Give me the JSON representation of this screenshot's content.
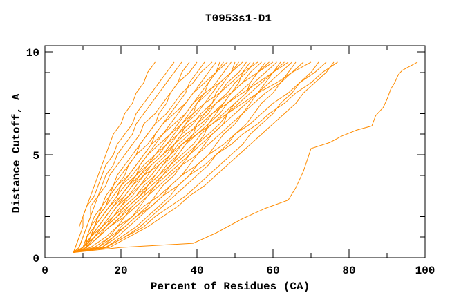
{
  "window": {
    "title": "T0953s1-D1"
  },
  "chart_data": {
    "type": "line",
    "title": "T0953s1-D1",
    "xlabel": "Percent of Residues (CA)",
    "ylabel": "Distance Cutoff, A",
    "xlim": [
      0,
      100
    ],
    "ylim": [
      0,
      10
    ],
    "x_major_ticks": [
      0,
      20,
      40,
      60,
      80,
      100
    ],
    "x_minor_ticks": [
      10,
      30,
      50,
      70,
      90
    ],
    "y_major_ticks": [
      0,
      5,
      10
    ],
    "y_minor_ticks": [
      1,
      2,
      3,
      4,
      6,
      7,
      8,
      9
    ],
    "grid": "off",
    "legend": "none",
    "line_color": "#ff8c00",
    "frame_color": "#000000",
    "origin": [
      7.5,
      0.25
    ],
    "cutoffs": [
      0.5,
      1.0,
      1.5,
      2.0,
      2.5,
      3.0,
      3.5,
      4.0,
      4.5,
      5.0,
      5.5,
      6.0,
      6.5,
      7.0,
      7.5,
      8.0,
      8.5,
      9.0,
      9.5
    ],
    "series": [
      [
        8,
        9,
        9,
        10,
        11,
        12,
        13,
        14,
        15,
        16,
        17,
        18,
        20,
        21,
        23,
        24,
        26,
        27,
        29
      ],
      [
        8,
        9,
        10,
        10,
        11,
        13,
        14,
        15,
        16,
        18,
        19,
        21,
        23,
        24,
        26,
        28,
        30,
        32,
        34
      ],
      [
        9,
        10,
        11,
        12,
        12,
        14,
        15,
        16,
        18,
        19,
        21,
        23,
        24,
        26,
        28,
        30,
        32,
        34,
        36
      ],
      [
        10,
        11,
        13,
        14,
        16,
        17,
        19,
        21,
        22,
        24,
        25,
        27,
        29,
        30,
        32,
        33,
        35,
        36,
        38
      ],
      [
        9,
        10,
        11,
        12,
        13,
        14,
        16,
        17,
        19,
        21,
        23,
        25,
        26,
        29,
        31,
        33,
        35,
        38,
        40
      ],
      [
        10,
        12,
        13,
        15,
        17,
        19,
        20,
        22,
        24,
        26,
        28,
        29,
        31,
        33,
        35,
        37,
        38,
        40,
        42
      ],
      [
        10,
        11,
        12,
        13,
        15,
        16,
        18,
        19,
        21,
        23,
        25,
        27,
        29,
        32,
        34,
        36,
        39,
        41,
        44
      ],
      [
        10,
        12,
        14,
        16,
        18,
        20,
        22,
        24,
        25,
        27,
        29,
        31,
        33,
        35,
        37,
        39,
        41,
        43,
        45
      ],
      [
        14,
        17,
        19,
        21,
        23,
        26,
        27,
        29,
        31,
        33,
        34,
        36,
        37,
        39,
        40,
        42,
        43,
        45,
        46
      ],
      [
        10,
        12,
        14,
        16,
        18,
        20,
        22,
        24,
        27,
        29,
        31,
        33,
        35,
        37,
        39,
        41,
        43,
        45,
        47
      ],
      [
        10,
        11,
        12,
        14,
        15,
        17,
        18,
        20,
        22,
        24,
        27,
        29,
        31,
        34,
        37,
        39,
        42,
        45,
        48
      ],
      [
        10,
        12,
        15,
        17,
        19,
        21,
        23,
        25,
        27,
        30,
        32,
        34,
        36,
        38,
        40,
        43,
        45,
        47,
        49
      ],
      [
        14,
        18,
        20,
        23,
        25,
        27,
        29,
        31,
        33,
        35,
        37,
        39,
        40,
        42,
        44,
        45,
        47,
        49,
        50
      ],
      [
        10,
        13,
        15,
        17,
        19,
        22,
        24,
        26,
        28,
        31,
        33,
        35,
        37,
        40,
        42,
        44,
        46,
        49,
        51
      ],
      [
        11,
        11,
        13,
        14,
        16,
        17,
        19,
        22,
        24,
        26,
        28,
        31,
        34,
        37,
        39,
        42,
        46,
        49,
        52
      ],
      [
        10,
        13,
        15,
        18,
        20,
        22,
        25,
        27,
        29,
        32,
        34,
        36,
        39,
        41,
        44,
        46,
        48,
        51,
        53
      ],
      [
        15,
        18,
        21,
        24,
        27,
        29,
        31,
        34,
        36,
        38,
        40,
        42,
        43,
        45,
        47,
        49,
        51,
        52,
        54
      ],
      [
        11,
        13,
        15,
        18,
        20,
        23,
        25,
        28,
        30,
        33,
        35,
        38,
        40,
        43,
        45,
        48,
        50,
        53,
        55
      ],
      [
        11,
        12,
        13,
        14,
        16,
        18,
        20,
        23,
        25,
        27,
        30,
        33,
        36,
        39,
        42,
        46,
        49,
        52,
        56
      ],
      [
        11,
        13,
        16,
        18,
        21,
        24,
        26,
        29,
        31,
        34,
        36,
        39,
        42,
        44,
        47,
        49,
        52,
        54,
        57
      ],
      [
        15,
        19,
        22,
        25,
        28,
        31,
        33,
        36,
        38,
        40,
        42,
        44,
        47,
        48,
        50,
        53,
        54,
        56,
        58
      ],
      [
        11,
        13,
        16,
        19,
        21,
        24,
        27,
        30,
        32,
        35,
        37,
        40,
        43,
        46,
        48,
        51,
        54,
        56,
        59
      ],
      [
        11,
        12,
        13,
        15,
        17,
        19,
        21,
        24,
        26,
        29,
        32,
        35,
        38,
        42,
        45,
        49,
        52,
        56,
        60
      ],
      [
        11,
        14,
        16,
        19,
        22,
        25,
        27,
        30,
        33,
        36,
        39,
        41,
        44,
        47,
        50,
        53,
        55,
        58,
        61
      ],
      [
        16,
        20,
        24,
        27,
        30,
        33,
        35,
        38,
        40,
        43,
        45,
        47,
        50,
        52,
        54,
        56,
        58,
        60,
        62
      ],
      [
        11,
        14,
        17,
        20,
        22,
        25,
        28,
        31,
        34,
        37,
        40,
        43,
        46,
        48,
        51,
        54,
        57,
        60,
        63
      ],
      [
        11,
        12,
        13,
        15,
        17,
        20,
        22,
        25,
        28,
        31,
        34,
        37,
        41,
        44,
        48,
        52,
        56,
        60,
        64
      ],
      [
        11,
        14,
        17,
        20,
        23,
        26,
        29,
        32,
        35,
        38,
        41,
        44,
        47,
        50,
        53,
        56,
        59,
        62,
        65
      ],
      [
        16,
        21,
        25,
        28,
        31,
        34,
        37,
        40,
        43,
        45,
        48,
        50,
        53,
        55,
        57,
        60,
        62,
        64,
        66
      ],
      [
        11,
        14,
        17,
        21,
        24,
        27,
        30,
        33,
        36,
        40,
        43,
        46,
        49,
        52,
        55,
        58,
        62,
        65,
        68
      ],
      [
        11,
        12,
        14,
        16,
        18,
        21,
        23,
        26,
        30,
        33,
        36,
        40,
        44,
        48,
        52,
        56,
        61,
        65,
        70
      ],
      [
        16,
        21,
        26,
        29,
        33,
        37,
        40,
        43,
        46,
        49,
        52,
        54,
        57,
        60,
        62,
        65,
        67,
        70,
        72
      ],
      [
        12,
        16,
        19,
        23,
        26,
        30,
        33,
        36,
        40,
        43,
        47,
        50,
        54,
        57,
        60,
        64,
        67,
        71,
        74
      ],
      [
        17,
        22,
        27,
        31,
        35,
        38,
        42,
        45,
        48,
        51,
        54,
        57,
        60,
        63,
        66,
        68,
        71,
        74,
        76
      ],
      [
        13,
        17,
        21,
        24,
        28,
        31,
        35,
        38,
        42,
        45,
        49,
        52,
        56,
        59,
        63,
        66,
        70,
        73,
        77
      ]
    ],
    "outlier_points": [
      [
        7.5,
        0.25
      ],
      [
        20,
        0.5
      ],
      [
        39,
        0.7
      ],
      [
        45,
        1.2
      ],
      [
        52,
        1.9
      ],
      [
        58,
        2.4
      ],
      [
        64,
        2.8
      ],
      [
        66,
        3.4
      ],
      [
        68,
        4.2
      ],
      [
        70,
        5.3
      ],
      [
        75,
        5.6
      ],
      [
        78,
        5.9
      ],
      [
        82,
        6.2
      ],
      [
        86,
        6.4
      ],
      [
        87,
        6.9
      ],
      [
        89,
        7.3
      ],
      [
        90,
        7.7
      ],
      [
        91,
        8.2
      ],
      [
        92,
        8.5
      ],
      [
        93,
        8.9
      ],
      [
        94,
        9.1
      ],
      [
        98,
        9.5
      ]
    ]
  }
}
